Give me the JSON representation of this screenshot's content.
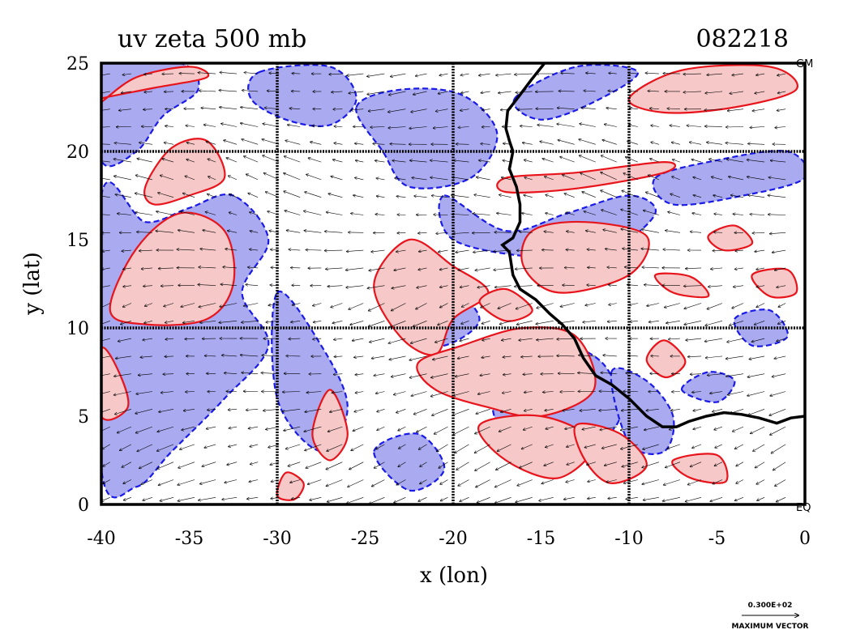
{
  "chart_data": {
    "type": "contour",
    "title": "uv zeta 500 mb",
    "timestamp": "082218",
    "xlabel": "x (lon)",
    "ylabel": "y (lat)",
    "xlim": [
      -40,
      0
    ],
    "ylim": [
      0,
      25
    ],
    "xticks": [
      "-40",
      "-35",
      "-30",
      "-25",
      "-20",
      "-15",
      "-10",
      "-5",
      "0"
    ],
    "yticks": [
      "0",
      "5",
      "10",
      "15",
      "20",
      "25"
    ],
    "grid_x": [
      -30,
      -20,
      -10
    ],
    "grid_y": [
      10,
      20
    ],
    "corner_labels": {
      "top_right": "GM",
      "bottom_right": "EQ"
    },
    "vector_legend": {
      "value": "0.300E+02",
      "label": "MAXIMUM VECTOR"
    },
    "colors": {
      "positive_fill": "#f7c8c8",
      "positive_line": "#e8141c",
      "negative_fill": "#a9aaf0",
      "negative_line": "#1a1ae6",
      "coastline": "#000000"
    },
    "coastline_lonlat": [
      [
        -14.8,
        25
      ],
      [
        -15.6,
        24
      ],
      [
        -16.2,
        23.2
      ],
      [
        -16.9,
        22.3
      ],
      [
        -17.0,
        21.3
      ],
      [
        -16.8,
        20.6
      ],
      [
        -16.6,
        20.0
      ],
      [
        -16.8,
        19.0
      ],
      [
        -16.4,
        18.0
      ],
      [
        -16.2,
        17.0
      ],
      [
        -16.2,
        16.0
      ],
      [
        -16.6,
        15.1
      ],
      [
        -17.2,
        14.7
      ],
      [
        -16.8,
        14.3
      ],
      [
        -16.6,
        13.0
      ],
      [
        -16.2,
        12.2
      ],
      [
        -15.3,
        11.6
      ],
      [
        -14.5,
        10.8
      ],
      [
        -13.8,
        10.2
      ],
      [
        -13.1,
        9.4
      ],
      [
        -12.6,
        8.3
      ],
      [
        -11.9,
        7.3
      ],
      [
        -11.0,
        6.8
      ],
      [
        -10.0,
        6.0
      ],
      [
        -9.0,
        5.0
      ],
      [
        -8.1,
        4.4
      ],
      [
        -7.3,
        4.4
      ],
      [
        -6.6,
        4.7
      ],
      [
        -5.6,
        5.0
      ],
      [
        -4.6,
        5.2
      ],
      [
        -3.6,
        5.1
      ],
      [
        -2.6,
        4.9
      ],
      [
        -1.6,
        4.6
      ],
      [
        -0.8,
        4.9
      ],
      [
        0,
        5.0
      ]
    ],
    "positive_regions_lonlat": [
      [
        [
          -40,
          22.8
        ],
        [
          -38,
          24.2
        ],
        [
          -35,
          24.8
        ],
        [
          -34,
          24.2
        ],
        [
          -37,
          23.6
        ],
        [
          -40,
          23.0
        ]
      ],
      [
        [
          -37.5,
          18.0
        ],
        [
          -36.0,
          20.2
        ],
        [
          -34.0,
          20.6
        ],
        [
          -33.0,
          18.5
        ],
        [
          -35.0,
          17.5
        ],
        [
          -37.0,
          17.0
        ]
      ],
      [
        [
          -39.5,
          11.0
        ],
        [
          -38.0,
          14.5
        ],
        [
          -35.5,
          16.5
        ],
        [
          -33.0,
          15.5
        ],
        [
          -32.5,
          12.5
        ],
        [
          -34.0,
          10.5
        ],
        [
          -37.5,
          10.2
        ]
      ],
      [
        [
          -40,
          8.8
        ],
        [
          -39.0,
          7.5
        ],
        [
          -38.5,
          5.5
        ],
        [
          -40,
          5.0
        ]
      ],
      [
        [
          -28.0,
          4.0
        ],
        [
          -27.0,
          6.5
        ],
        [
          -26.0,
          4.0
        ],
        [
          -27.0,
          2.5
        ]
      ],
      [
        [
          -30.0,
          0.5
        ],
        [
          -29.5,
          1.8
        ],
        [
          -28.5,
          1.2
        ],
        [
          -29.0,
          0.3
        ]
      ],
      [
        [
          -24.5,
          12.5
        ],
        [
          -22.5,
          15.0
        ],
        [
          -20.0,
          13.5
        ],
        [
          -18.0,
          12.0
        ],
        [
          -20.0,
          10.5
        ],
        [
          -21.0,
          8.5
        ],
        [
          -23.0,
          9.5
        ]
      ],
      [
        [
          -22.0,
          8.0
        ],
        [
          -19.5,
          9.0
        ],
        [
          -16.0,
          10.0
        ],
        [
          -13.0,
          9.5
        ],
        [
          -12.0,
          6.5
        ],
        [
          -15.0,
          5.0
        ],
        [
          -18.0,
          5.5
        ],
        [
          -21.0,
          6.5
        ]
      ],
      [
        [
          -18.5,
          4.5
        ],
        [
          -15.0,
          5.0
        ],
        [
          -12.0,
          3.5
        ],
        [
          -14.0,
          1.5
        ],
        [
          -17.0,
          2.5
        ]
      ],
      [
        [
          -13.0,
          4.5
        ],
        [
          -10.5,
          4.0
        ],
        [
          -9.0,
          2.2
        ],
        [
          -11.0,
          1.2
        ],
        [
          -12.5,
          2.5
        ]
      ],
      [
        [
          -15.5,
          15.5
        ],
        [
          -12.5,
          16.0
        ],
        [
          -9.0,
          15.2
        ],
        [
          -10.0,
          13.0
        ],
        [
          -14.0,
          12.0
        ],
        [
          -16.0,
          13.5
        ]
      ],
      [
        [
          -17.0,
          18.5
        ],
        [
          -13.0,
          18.8
        ],
        [
          -8.0,
          19.4
        ],
        [
          -8.0,
          18.8
        ],
        [
          -13.0,
          17.9
        ],
        [
          -17.0,
          17.7
        ]
      ],
      [
        [
          -10.0,
          23.0
        ],
        [
          -7.0,
          24.6
        ],
        [
          -2.0,
          24.8
        ],
        [
          -0.5,
          23.5
        ],
        [
          -4.0,
          22.5
        ],
        [
          -8.0,
          22.2
        ]
      ],
      [
        [
          -8.5,
          13.0
        ],
        [
          -7.5,
          12.0
        ],
        [
          -5.5,
          11.8
        ],
        [
          -6.5,
          12.9
        ]
      ],
      [
        [
          -3.0,
          13.0
        ],
        [
          -1.0,
          13.3
        ],
        [
          -0.5,
          12.0
        ],
        [
          -2.0,
          11.8
        ]
      ],
      [
        [
          -5.5,
          15.2
        ],
        [
          -4.0,
          15.8
        ],
        [
          -3.0,
          14.8
        ],
        [
          -4.6,
          14.4
        ]
      ],
      [
        [
          -7.5,
          2.5
        ],
        [
          -5.0,
          2.8
        ],
        [
          -4.5,
          1.3
        ],
        [
          -6.5,
          1.5
        ]
      ],
      [
        [
          -18.5,
          11.5
        ],
        [
          -17.0,
          12.2
        ],
        [
          -15.5,
          11.0
        ],
        [
          -17.0,
          10.4
        ]
      ],
      [
        [
          -9.0,
          8.2
        ],
        [
          -8.0,
          9.3
        ],
        [
          -6.8,
          8.1
        ],
        [
          -7.9,
          7.2
        ]
      ]
    ],
    "negative_regions_lonlat": [
      [
        [
          -40,
          25
        ],
        [
          -35.5,
          25
        ],
        [
          -34.5,
          23.5
        ],
        [
          -36.5,
          22.0
        ],
        [
          -38.0,
          20.0
        ],
        [
          -40,
          19.5
        ]
      ],
      [
        [
          -31.0,
          24.5
        ],
        [
          -27.0,
          24.8
        ],
        [
          -25.5,
          23.0
        ],
        [
          -27.0,
          21.5
        ],
        [
          -29.5,
          21.8
        ],
        [
          -31.5,
          23.0
        ]
      ],
      [
        [
          -25.5,
          22.5
        ],
        [
          -23.0,
          23.5
        ],
        [
          -19.5,
          23.2
        ],
        [
          -17.5,
          21.0
        ],
        [
          -19.0,
          18.5
        ],
        [
          -22.5,
          18.0
        ],
        [
          -24.0,
          20.0
        ]
      ],
      [
        [
          -40,
          17.5
        ],
        [
          -37.5,
          16.0
        ],
        [
          -35.0,
          16.8
        ],
        [
          -32.5,
          17.5
        ],
        [
          -30.5,
          15.0
        ],
        [
          -32.0,
          12.0
        ],
        [
          -30.5,
          9.0
        ],
        [
          -33.0,
          6.0
        ],
        [
          -36.0,
          3.0
        ],
        [
          -38.0,
          1.0
        ],
        [
          -40,
          2.0
        ]
      ],
      [
        [
          -30.0,
          12.0
        ],
        [
          -27.5,
          9.0
        ],
        [
          -26.0,
          5.5
        ],
        [
          -27.5,
          3.0
        ],
        [
          -30.0,
          6.0
        ]
      ],
      [
        [
          -20.5,
          17.5
        ],
        [
          -17.0,
          15.5
        ],
        [
          -13.5,
          16.5
        ],
        [
          -10.0,
          17.5
        ],
        [
          -8.5,
          16.5
        ],
        [
          -11.0,
          14.5
        ],
        [
          -15.0,
          14.0
        ],
        [
          -20.0,
          15.0
        ]
      ],
      [
        [
          -8.5,
          18.5
        ],
        [
          -5.0,
          19.5
        ],
        [
          -1.0,
          20.0
        ],
        [
          0,
          18.5
        ],
        [
          -3.5,
          17.5
        ],
        [
          -7.5,
          17.0
        ]
      ],
      [
        [
          -16.5,
          23.0
        ],
        [
          -13.0,
          24.8
        ],
        [
          -9.5,
          24.5
        ],
        [
          -12.0,
          22.8
        ],
        [
          -15.0,
          21.8
        ]
      ],
      [
        [
          -22.5,
          11.5
        ],
        [
          -20.5,
          12.5
        ],
        [
          -18.5,
          10.5
        ],
        [
          -20.5,
          9.0
        ],
        [
          -22.5,
          9.5
        ]
      ],
      [
        [
          -17.5,
          8.0
        ],
        [
          -14.5,
          9.2
        ],
        [
          -11.5,
          8.0
        ],
        [
          -10.5,
          5.0
        ],
        [
          -12.5,
          3.0
        ],
        [
          -15.0,
          2.0
        ],
        [
          -17.5,
          4.5
        ]
      ],
      [
        [
          -11.0,
          7.5
        ],
        [
          -9.0,
          7.0
        ],
        [
          -7.5,
          5.0
        ],
        [
          -8.0,
          3.0
        ],
        [
          -10.0,
          3.5
        ]
      ],
      [
        [
          -7.0,
          6.5
        ],
        [
          -5.5,
          7.5
        ],
        [
          -4.0,
          7.0
        ],
        [
          -5.0,
          5.8
        ]
      ],
      [
        [
          -4.0,
          10.5
        ],
        [
          -2.0,
          11.0
        ],
        [
          -1.0,
          9.5
        ],
        [
          -3.0,
          9.0
        ]
      ],
      [
        [
          -24.5,
          3.0
        ],
        [
          -22.0,
          4.0
        ],
        [
          -20.5,
          2.0
        ],
        [
          -22.5,
          0.8
        ]
      ]
    ]
  }
}
